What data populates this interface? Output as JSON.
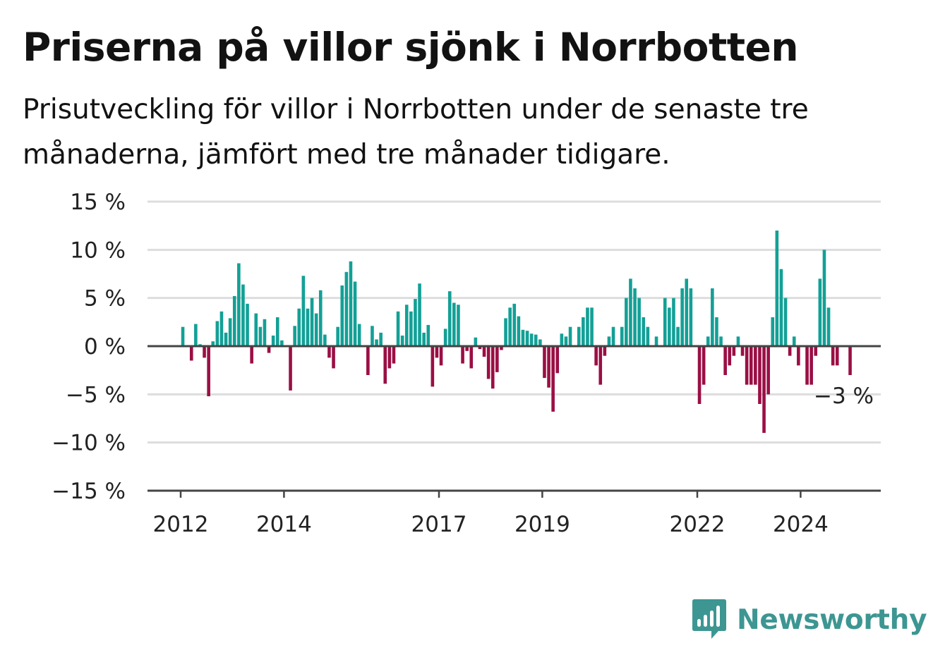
{
  "title": "Priserna på villor sjönk i Norrbotten",
  "subtitle": "Prisutveckling för villor i Norrbotten under de senaste tre månaderna, jämfört med tre månader tidigare.",
  "brand": {
    "name": "Newsworthy",
    "icon": "newsworthy-bar-chart-bubble-icon",
    "color": "#3d9692"
  },
  "chart_data": {
    "type": "bar",
    "title": "Priserna på villor sjönk i Norrbotten",
    "subtitle": "Prisutveckling för villor i Norrbotten under de senaste tre månaderna, jämfört med tre månader tidigare.",
    "xlabel": "",
    "ylabel": "",
    "x_unit": "month",
    "x_start": "2012-01",
    "x_end": "2024-12",
    "ylim": [
      -15,
      15
    ],
    "yticks": [
      15,
      10,
      5,
      0,
      -5,
      -10,
      -15
    ],
    "ytick_labels": [
      "15 %",
      "10 %",
      "5 %",
      "0 %",
      "−5 %",
      "−10 %",
      "−15 %"
    ],
    "xtick_labels": [
      "2012",
      "2014",
      "2017",
      "2019",
      "2022",
      "2024"
    ],
    "grid": true,
    "colors": {
      "positive": "#13a096",
      "negative": "#9a0f44",
      "gridline": "#dddddd",
      "zero_line": "#444444"
    },
    "last_value_label": "−3 %",
    "values": [
      2.0,
      null,
      -1.5,
      2.3,
      0.2,
      -1.2,
      -5.2,
      0.5,
      2.6,
      3.6,
      1.4,
      2.9,
      5.2,
      8.6,
      6.4,
      4.4,
      -1.8,
      3.4,
      2.0,
      2.8,
      -0.7,
      1.1,
      3.0,
      0.6,
      null,
      -4.6,
      2.1,
      3.9,
      7.3,
      3.9,
      5.0,
      3.4,
      5.8,
      1.2,
      -1.2,
      -2.3,
      2.0,
      6.3,
      7.7,
      8.8,
      6.7,
      2.3,
      null,
      -3.0,
      2.1,
      0.7,
      1.4,
      -3.9,
      -2.3,
      -1.8,
      3.6,
      1.1,
      4.3,
      3.6,
      4.9,
      6.5,
      1.4,
      2.2,
      -4.2,
      -1.2,
      -2.0,
      1.8,
      5.7,
      4.5,
      4.3,
      -1.8,
      -0.5,
      -2.3,
      0.9,
      -0.3,
      -1.1,
      -3.4,
      -4.4,
      -2.7,
      -0.4,
      2.9,
      4.0,
      4.4,
      3.1,
      1.7,
      1.6,
      1.3,
      1.2,
      0.7,
      -3.3,
      -4.3,
      -6.8,
      -2.8,
      1.3,
      1.0,
      2.0,
      null,
      2.0,
      3.0,
      4.0,
      4.0,
      -2.0,
      -4.0,
      -1.0,
      1.0,
      2.0,
      null,
      2.0,
      5.0,
      7.0,
      6.0,
      5.0,
      3.0,
      2.0,
      null,
      1.0,
      null,
      5.0,
      4.0,
      5.0,
      2.0,
      6.0,
      7.0,
      6.0,
      null,
      -6.0,
      -4.0,
      1.0,
      6.0,
      3.0,
      1.0,
      -3.0,
      -2.0,
      -1.0,
      1.0,
      -1.0,
      -4.0,
      -4.0,
      -4.0,
      -6.0,
      -9.0,
      -5.0,
      3.0,
      12.0,
      8.0,
      5.0,
      -1.0,
      1.0,
      -2.0,
      null,
      -4.0,
      -4.0,
      -1.0,
      7.0,
      10.0,
      4.0,
      -2.0,
      -2.0,
      null,
      null,
      -3.0
    ]
  }
}
